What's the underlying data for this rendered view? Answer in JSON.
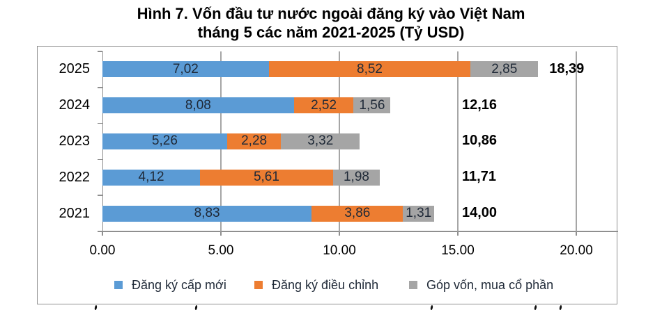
{
  "title": {
    "line1": "Hình 7. Vốn đầu tư nước ngoài đăng ký vào Việt Nam",
    "line2": "tháng 5 các năm 2021-2025 (Tỷ USD)"
  },
  "chart_data": {
    "type": "bar",
    "orientation": "horizontal",
    "stacked": true,
    "title": "Hình 7. Vốn đầu tư nước ngoài đăng ký vào Việt Nam tháng 5 các năm 2021-2025 (Tỷ USD)",
    "categories": [
      "2025",
      "2024",
      "2023",
      "2022",
      "2021"
    ],
    "series": [
      {
        "key": "cap-moi",
        "name": "Đăng ký cấp mới",
        "color": "#5B9BD5",
        "values": [
          7.02,
          8.08,
          5.26,
          4.12,
          8.83
        ],
        "labels": [
          "7,02",
          "8,08",
          "5,26",
          "4,12",
          "8,83"
        ]
      },
      {
        "key": "dieu-chinh",
        "name": "Đăng ký điều chỉnh",
        "color": "#ED7D31",
        "values": [
          8.52,
          2.52,
          2.28,
          5.61,
          3.86
        ],
        "labels": [
          "8,52",
          "2,52",
          "2,28",
          "5,61",
          "3,86"
        ]
      },
      {
        "key": "gop-von",
        "name": "Góp vốn, mua cổ phần",
        "color": "#A5A5A5",
        "values": [
          2.85,
          1.56,
          3.32,
          1.98,
          1.31
        ],
        "labels": [
          "2,85",
          "1,56",
          "3,32",
          "1,98",
          "1,31"
        ]
      }
    ],
    "totals": [
      "18,39",
      "12,16",
      "10,86",
      "11,71",
      "14,00"
    ],
    "total_values": [
      18.39,
      12.16,
      10.86,
      11.71,
      14.0
    ],
    "x_axis": {
      "min": 0,
      "max": 20,
      "tick_values": [
        0,
        5,
        10,
        15,
        20
      ],
      "ticks": [
        "0.00",
        "5.00",
        "10.00",
        "15.00",
        "20.00"
      ]
    },
    "legend_position": "bottom",
    "gridlines": true
  }
}
